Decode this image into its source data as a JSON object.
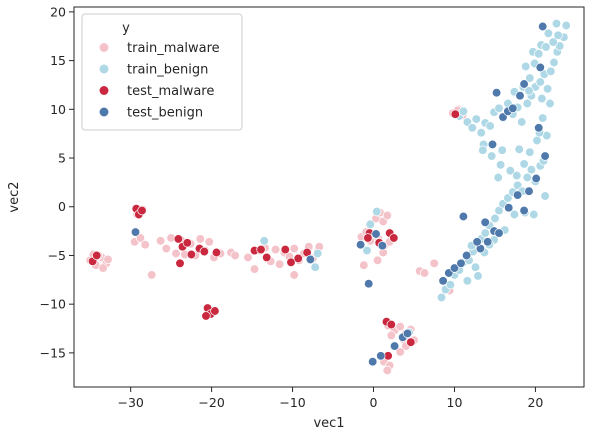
{
  "chart_data": {
    "type": "scatter",
    "xlabel": "vec1",
    "ylabel": "vec2",
    "xlim": [
      -37,
      26
    ],
    "ylim": [
      -18.5,
      20.5
    ],
    "xticks": [
      -30,
      -20,
      -10,
      0,
      10,
      20
    ],
    "yticks": [
      -15,
      -10,
      -5,
      0,
      5,
      10,
      15,
      20
    ],
    "grid": false,
    "legend": {
      "title": "y",
      "placement": "top-left",
      "entries": [
        "train_malware",
        "train_benign",
        "test_malware",
        "test_benign"
      ]
    },
    "series": [
      {
        "name": "train_malware",
        "color": "#f4c2c9",
        "points": [
          [
            -35,
            -5.5
          ],
          [
            -34.3,
            -6
          ],
          [
            -33.6,
            -5.2
          ],
          [
            -33,
            -5.8
          ],
          [
            -34.6,
            -4.9
          ],
          [
            -33.4,
            -6.3
          ],
          [
            -34,
            -5
          ],
          [
            -32.8,
            -5.4
          ],
          [
            -29.5,
            -3.6
          ],
          [
            -28.8,
            -3.2
          ],
          [
            -28.2,
            -3.9
          ],
          [
            -29.2,
            -0.8
          ],
          [
            -28.5,
            -0.3
          ],
          [
            -27.4,
            -7
          ],
          [
            -26.3,
            -3.5
          ],
          [
            -25.6,
            -4.3
          ],
          [
            -25,
            -3.2
          ],
          [
            -24.4,
            -4.8
          ],
          [
            -23.8,
            -3.4
          ],
          [
            -23.3,
            -4.9
          ],
          [
            -22.6,
            -3.8
          ],
          [
            -22,
            -5
          ],
          [
            -21.4,
            -3.3
          ],
          [
            -20.8,
            -4.5
          ],
          [
            -20.3,
            -3.6
          ],
          [
            -19.7,
            -5.2
          ],
          [
            -18.9,
            -4.8
          ],
          [
            -17.6,
            -4.7
          ],
          [
            -17.1,
            -5
          ],
          [
            -15.5,
            -5.2
          ],
          [
            -14.7,
            -6.4
          ],
          [
            -14.1,
            -4.5
          ],
          [
            -13.4,
            -4.2
          ],
          [
            -12.7,
            -5.6
          ],
          [
            -12.1,
            -4.4
          ],
          [
            -11.6,
            -5.9
          ],
          [
            -11,
            -4.7
          ],
          [
            -10.4,
            -5.1
          ],
          [
            -9.8,
            -4.3
          ],
          [
            -9.2,
            -5.5
          ],
          [
            -9.8,
            -7
          ],
          [
            -8.6,
            -4.8
          ],
          [
            -8,
            -4.1
          ],
          [
            -7.5,
            -5.3
          ],
          [
            -6.9,
            -4.6
          ],
          [
            -6.7,
            -4.1
          ],
          [
            -1.5,
            -3.1
          ],
          [
            -0.9,
            -2.6
          ],
          [
            -0.4,
            -3.5
          ],
          [
            0.3,
            -1.2
          ],
          [
            0.8,
            -0.6
          ],
          [
            1.2,
            -1.5
          ],
          [
            1.7,
            -0.9
          ],
          [
            0.6,
            -3.3
          ],
          [
            1.3,
            -4
          ],
          [
            2,
            -3.6
          ],
          [
            1.2,
            -4.7
          ],
          [
            -1.2,
            -6
          ],
          [
            0.5,
            -5.5
          ],
          [
            1.8,
            -12.2
          ],
          [
            2.6,
            -12.7
          ],
          [
            3.3,
            -12.3
          ],
          [
            4,
            -13
          ],
          [
            4.6,
            -12.6
          ],
          [
            5,
            -13.7
          ],
          [
            3.7,
            -13.6
          ],
          [
            2.2,
            -13.2
          ],
          [
            1.3,
            -15.9
          ],
          [
            2,
            -16.3
          ],
          [
            1.7,
            -16.8
          ],
          [
            4,
            -14.3
          ],
          [
            3.3,
            -14.9
          ],
          [
            5.7,
            -6.6
          ],
          [
            6.3,
            -6.8
          ],
          [
            7.5,
            -5.8
          ],
          [
            9.8,
            9.6
          ],
          [
            10.5,
            10
          ],
          [
            11,
            9.4
          ],
          [
            10.4,
            9.9
          ],
          [
            9.4,
            -8.6
          ]
        ]
      },
      {
        "name": "train_benign",
        "color": "#aed8e6",
        "points": [
          [
            -7.2,
            -6.2
          ],
          [
            -6.9,
            -4.8
          ],
          [
            -13.5,
            -3.5
          ],
          [
            -0.8,
            -4.5
          ],
          [
            -0.4,
            -1.8
          ],
          [
            0.4,
            -0.5
          ],
          [
            4.4,
            -12.9
          ],
          [
            8.4,
            -9.3
          ],
          [
            8.9,
            -8.5
          ],
          [
            9.5,
            -8
          ],
          [
            10,
            -7
          ],
          [
            10.6,
            -6.5
          ],
          [
            11.1,
            -5.7
          ],
          [
            11.8,
            -5.5
          ],
          [
            12.3,
            -4.6
          ],
          [
            12.8,
            -3.8
          ],
          [
            13.3,
            -3.3
          ],
          [
            13.8,
            -2.7
          ],
          [
            14.3,
            -1.9
          ],
          [
            15,
            -1.2
          ],
          [
            15.5,
            -0.4
          ],
          [
            16,
            0.3
          ],
          [
            16.6,
            0.9
          ],
          [
            17.2,
            1.5
          ],
          [
            17.8,
            2.2
          ],
          [
            18.4,
            1.6
          ],
          [
            19,
            3
          ],
          [
            19.5,
            3.8
          ],
          [
            20,
            2.6
          ],
          [
            20.6,
            4.2
          ],
          [
            21,
            4.7
          ],
          [
            11.6,
            -7.6
          ],
          [
            12.6,
            -6.2
          ],
          [
            13.7,
            -4.7
          ],
          [
            14.9,
            -3.4
          ],
          [
            16.2,
            -2.4
          ],
          [
            17.4,
            -0.8
          ],
          [
            18.7,
            -0.6
          ],
          [
            19.8,
            -0.8
          ],
          [
            21.2,
            1.1
          ],
          [
            10.6,
            9.3
          ],
          [
            11.1,
            9.8
          ],
          [
            11.6,
            8.7
          ],
          [
            12.2,
            8.1
          ],
          [
            12.7,
            9
          ],
          [
            13.3,
            7.6
          ],
          [
            13.8,
            8.6
          ],
          [
            14.4,
            8.3
          ],
          [
            14.9,
            9.7
          ],
          [
            15.5,
            10.1
          ],
          [
            16,
            9.1
          ],
          [
            16.6,
            10.6
          ],
          [
            17.2,
            9.5
          ],
          [
            17.8,
            10.2
          ],
          [
            18.3,
            8.7
          ],
          [
            19,
            10.6
          ],
          [
            19.5,
            11.4
          ],
          [
            20,
            12.3
          ],
          [
            20.6,
            12.8
          ],
          [
            21.1,
            13.6
          ],
          [
            21.5,
            12.1
          ],
          [
            21.9,
            13.9
          ],
          [
            22.3,
            14.8
          ],
          [
            22.7,
            15.9
          ],
          [
            23,
            16.5
          ],
          [
            23.5,
            17.4
          ],
          [
            23.8,
            18.6
          ],
          [
            22.6,
            18.8
          ],
          [
            21.6,
            17.8
          ],
          [
            20.7,
            16.6
          ],
          [
            19.7,
            15.9
          ],
          [
            18.8,
            14.4
          ],
          [
            19.3,
            13.2
          ],
          [
            19.9,
            14.7
          ],
          [
            20.4,
            15.7
          ],
          [
            21.3,
            16.4
          ],
          [
            22.2,
            16.9
          ],
          [
            22.8,
            17.6
          ],
          [
            18.5,
            12.3
          ],
          [
            19.2,
            11.9
          ],
          [
            17.4,
            11.8
          ],
          [
            13.6,
            6.4
          ],
          [
            14.6,
            5.2
          ],
          [
            15.7,
            4.3
          ],
          [
            16.9,
            3.7
          ],
          [
            17.7,
            3.2
          ],
          [
            18.6,
            4.4
          ],
          [
            19.3,
            5.6
          ],
          [
            20.2,
            6.8
          ],
          [
            21.4,
            7.3
          ],
          [
            20.5,
            7.6
          ],
          [
            18,
            5.9
          ],
          [
            15.4,
            3
          ],
          [
            15.9,
            5.8
          ],
          [
            13.5,
            5.8
          ],
          [
            12.1,
            -4
          ],
          [
            14.3,
            -3.9
          ],
          [
            20.9,
            9.1
          ],
          [
            21.8,
            10.6
          ],
          [
            20.8,
            11.1
          ],
          [
            12.9,
            -7.1
          ]
        ]
      },
      {
        "name": "test_malware",
        "color": "#c9283e",
        "points": [
          [
            -34.7,
            -5.6
          ],
          [
            -34.2,
            -5
          ],
          [
            -29.3,
            -0.2
          ],
          [
            -29,
            -0.8
          ],
          [
            -28.6,
            -0.4
          ],
          [
            -24.1,
            -3.3
          ],
          [
            -23.6,
            -4.1
          ],
          [
            -23.9,
            -5.8
          ],
          [
            -22.5,
            -4.9
          ],
          [
            -21.5,
            -4.3
          ],
          [
            -20.9,
            -4.6
          ],
          [
            -23,
            -3.7
          ],
          [
            -20.5,
            -10.4
          ],
          [
            -20.1,
            -11
          ],
          [
            -19.6,
            -10.7
          ],
          [
            -20.7,
            -11.2
          ],
          [
            -19.4,
            -4.7
          ],
          [
            -14.7,
            -4.5
          ],
          [
            -13.9,
            -4.4
          ],
          [
            -13.2,
            -5.2
          ],
          [
            -10.9,
            -4.4
          ],
          [
            -10.2,
            -5.7
          ],
          [
            -9.3,
            -5.3
          ],
          [
            -8.2,
            -4.7
          ],
          [
            -0.5,
            -2.7
          ],
          [
            -0.7,
            -3.2
          ],
          [
            2,
            -2.7
          ],
          [
            2.5,
            -3.2
          ],
          [
            0.7,
            -3.7
          ],
          [
            1.6,
            -11.8
          ],
          [
            2.2,
            -12.1
          ],
          [
            1.8,
            -15.3
          ],
          [
            4.6,
            -13.9
          ],
          [
            10.1,
            9.5
          ]
        ]
      },
      {
        "name": "test_benign",
        "color": "#4f79ab",
        "points": [
          [
            -29.4,
            -2.6
          ],
          [
            -7.8,
            -5.4
          ],
          [
            -1.6,
            -3.9
          ],
          [
            -0.6,
            -7.9
          ],
          [
            0.3,
            -2.8
          ],
          [
            1.1,
            -4
          ],
          [
            -0.1,
            -15.9
          ],
          [
            0.9,
            -15.3
          ],
          [
            2.6,
            -14.3
          ],
          [
            3.6,
            -13.4
          ],
          [
            4.2,
            -13
          ],
          [
            8.6,
            -7.6
          ],
          [
            9.3,
            -6.8
          ],
          [
            10,
            -6.3
          ],
          [
            10.8,
            -5.8
          ],
          [
            11.5,
            -5
          ],
          [
            13.2,
            -4.3
          ],
          [
            14.1,
            -3.6
          ],
          [
            14.9,
            -2.5
          ],
          [
            15.5,
            -2.7
          ],
          [
            11.1,
            -1
          ],
          [
            14.7,
            6.4
          ],
          [
            16.7,
            -0.1
          ],
          [
            17.8,
            1.2
          ],
          [
            18.6,
            -0.4
          ],
          [
            19.2,
            1.6
          ],
          [
            20.1,
            2.9
          ],
          [
            20.4,
            8.1
          ],
          [
            21.2,
            5.2
          ],
          [
            16,
            9.2
          ],
          [
            16.6,
            9.8
          ],
          [
            17.2,
            10.1
          ],
          [
            15.2,
            11.7
          ],
          [
            18.1,
            11.4
          ],
          [
            18.6,
            12.6
          ],
          [
            20.6,
            14.3
          ],
          [
            20.9,
            18.5
          ],
          [
            13.8,
            -1.6
          ],
          [
            12.8,
            -3.6
          ]
        ]
      }
    ]
  }
}
